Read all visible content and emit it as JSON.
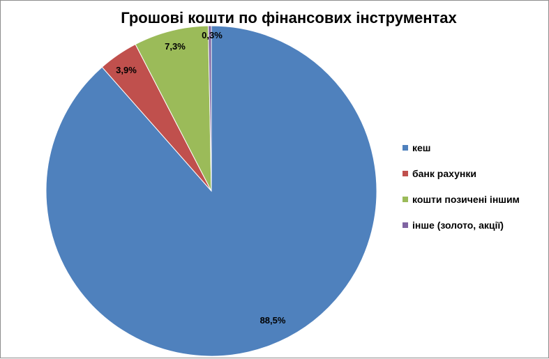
{
  "chart_data": {
    "type": "pie",
    "title": "Грошові кошти по фінансових інструментах",
    "slices": [
      {
        "name": "кеш",
        "value": 88.5,
        "label": "88,5%",
        "color": "#4f81bd"
      },
      {
        "name": "банк рахунки",
        "value": 3.9,
        "label": "3,9%",
        "color": "#c0504d"
      },
      {
        "name": "кошти позичені іншим",
        "value": 7.3,
        "label": "7,3%",
        "color": "#9bbb59"
      },
      {
        "name": "інше (золото, акції)",
        "value": 0.3,
        "label": "0,3%",
        "color": "#8064a2"
      }
    ],
    "legend_position": "right"
  }
}
